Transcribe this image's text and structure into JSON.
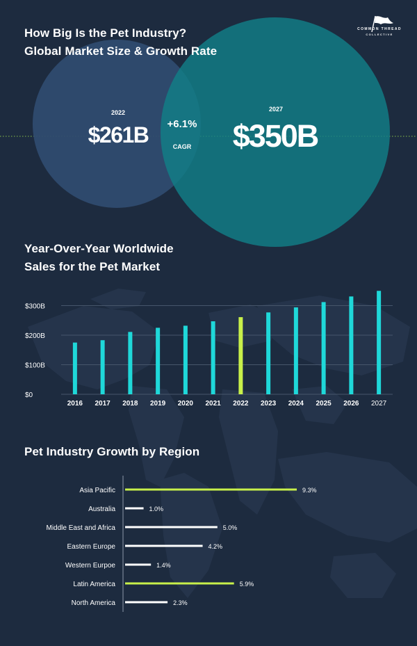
{
  "logo": {
    "line1": "COMMON THREAD",
    "line2": "COLLECTIVE",
    "icon": "flag-icon"
  },
  "section1": {
    "title_line1": "How Big Is the Pet Industry?",
    "title_line2": "Global Market Size & Growth Rate",
    "left": {
      "year": "2022",
      "value": "$261B"
    },
    "overlap": {
      "rate": "+6.1%",
      "label": "CAGR"
    },
    "right": {
      "year": "2027",
      "value": "$350B"
    }
  },
  "section2": {
    "title_line1": "Year-Over-Year Worldwide",
    "title_line2": "Sales for the Pet Market"
  },
  "section3": {
    "title": "Pet Industry Growth by Region"
  },
  "colors": {
    "background": "#1d2b3f",
    "circle_2022": "#2f4b6f",
    "circle_2027": "#117f88",
    "bar": "#1fd8d9",
    "highlight": "#c8f04a",
    "region_bar": "#ffffff"
  },
  "chart_data": [
    {
      "type": "bar",
      "title": "Year-Over-Year Worldwide Sales for the Pet Market",
      "categories": [
        "2016",
        "2017",
        "2018",
        "2019",
        "2020",
        "2021",
        "2022",
        "2023",
        "2024",
        "2025",
        "2026",
        "2027"
      ],
      "values": [
        175,
        183,
        211,
        225,
        232,
        247,
        261,
        277,
        294,
        312,
        331,
        350
      ],
      "highlight_category": "2022",
      "y_ticks": [
        "$0",
        "$100B",
        "$200B",
        "$300B"
      ],
      "ylim": [
        0,
        350
      ],
      "grid": true
    },
    {
      "type": "bar",
      "orientation": "horizontal",
      "title": "Pet Industry Growth by Region",
      "categories": [
        "Asia Pacific",
        "Australia",
        "Middle East and Africa",
        "Eastern Europe",
        "Western Eurpoe",
        "Latin America",
        "North America"
      ],
      "values": [
        9.3,
        1.0,
        5.0,
        4.2,
        1.4,
        5.9,
        2.3
      ],
      "labels": [
        "9.3%",
        "1.0%",
        "5.0%",
        "4.2%",
        "1.4%",
        "5.9%",
        "2.3%"
      ],
      "highlight_categories": [
        "Asia Pacific",
        "Latin America"
      ]
    }
  ]
}
